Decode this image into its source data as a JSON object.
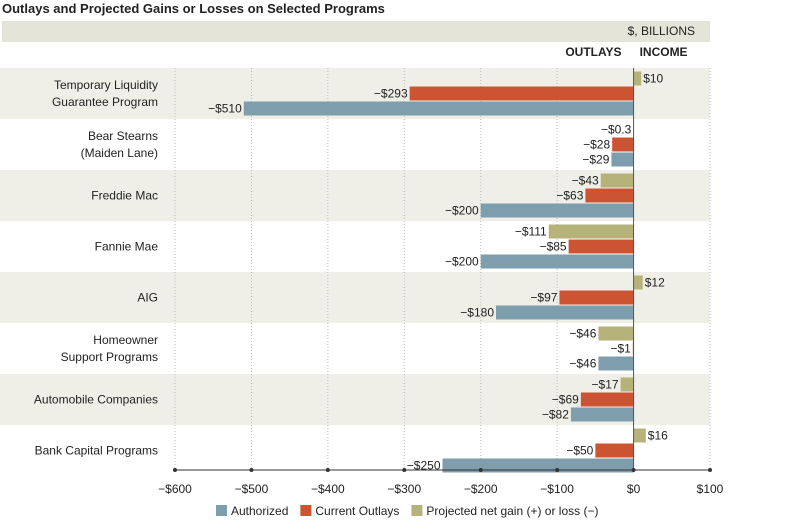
{
  "title": "Outlays and Projected Gains or Losses on Selected Programs",
  "chart_data": {
    "type": "bar",
    "orientation": "horizontal",
    "unit_label": "$, BILLIONS",
    "left_header": "OUTLAYS",
    "right_header": "INCOME",
    "categories": [
      [
        "Temporary Liquidity",
        "Guarantee Program"
      ],
      [
        "Bear Stearns",
        "(Maiden Lane)"
      ],
      [
        "Freddie Mac"
      ],
      [
        "Fannie Mae"
      ],
      [
        "AIG"
      ],
      [
        "Homeowner",
        "Support Programs"
      ],
      [
        "Automobile Companies"
      ],
      [
        "Bank Capital Programs"
      ]
    ],
    "series": [
      {
        "name": "Projected net gain (+) or loss (−)",
        "color": "#b5b37a",
        "values": [
          10,
          -0.3,
          -43,
          -111,
          12,
          -46,
          -17,
          16
        ],
        "labels": [
          "$10",
          "−$0.3",
          "−$43",
          "−$111",
          "$12",
          "−$46",
          "−$17",
          "$16"
        ]
      },
      {
        "name": "Current Outlays",
        "color": "#cc5433",
        "values": [
          -293,
          -28,
          -63,
          -85,
          -97,
          -1,
          -69,
          -50
        ],
        "labels": [
          "−$293",
          "−$28",
          "−$63",
          "−$85",
          "−$97",
          "−$1",
          "−$69",
          "−$50"
        ]
      },
      {
        "name": "Authorized",
        "color": "#7f9ead",
        "values": [
          -510,
          -29,
          -200,
          -200,
          -180,
          -46,
          -82,
          -250
        ],
        "labels": [
          "−$510",
          "−$29",
          "−$200",
          "−$200",
          "−$180",
          "−$46",
          "−$82",
          "−$250"
        ]
      }
    ],
    "legend": {
      "placement": "bottom",
      "order": [
        "Authorized",
        "Current Outlays",
        "Projected net gain (+) or loss (−)"
      ]
    },
    "xlim": [
      -600,
      100
    ],
    "xticks": [
      -600,
      -500,
      -400,
      -300,
      -200,
      -100,
      0,
      100
    ],
    "xtick_labels": [
      "−$600",
      "−$500",
      "−$400",
      "−$300",
      "−$200",
      "−$100",
      "$0",
      "$100"
    ],
    "grid": true
  }
}
